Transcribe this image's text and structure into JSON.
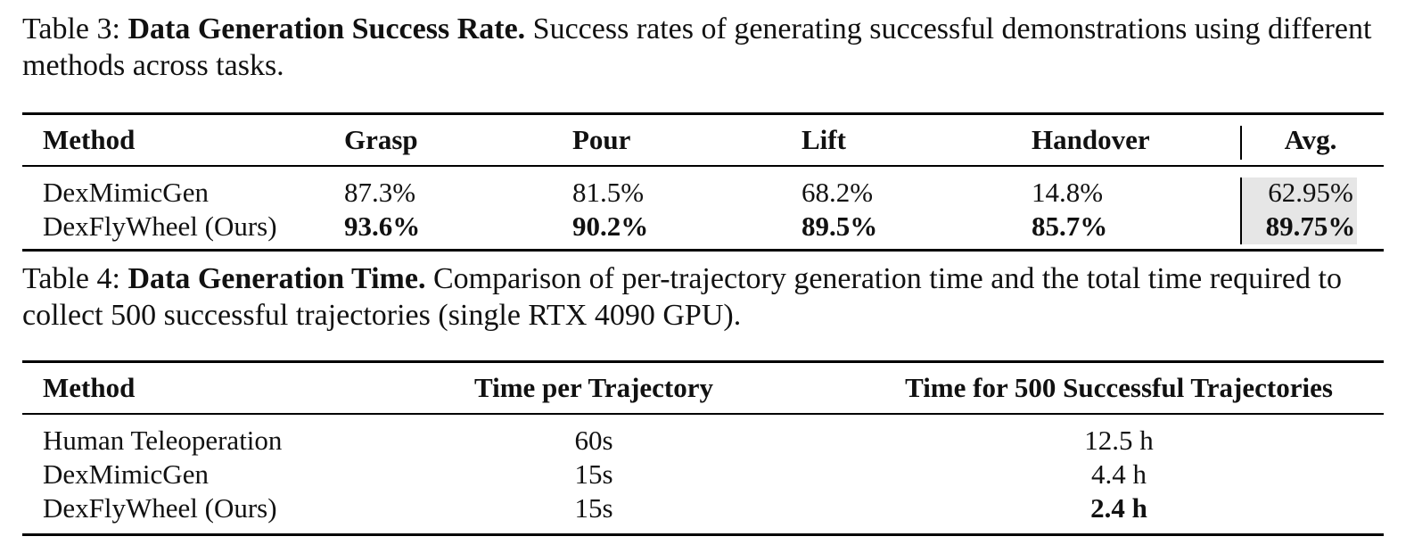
{
  "table3": {
    "caption_prefix": "Table 3:",
    "caption_bold": "Data Generation Success Rate.",
    "caption_text": "Success rates of generating successful demonstrations using different methods across tasks.",
    "headers": [
      "Method",
      "Grasp",
      "Pour",
      "Lift",
      "Handover",
      "Avg."
    ],
    "rows": [
      [
        "DexMimicGen",
        "87.3%",
        "81.5%",
        "68.2%",
        "14.8%",
        "62.95%"
      ],
      [
        "DexFlyWheel (Ours)",
        "93.6%",
        "90.2%",
        "89.5%",
        "85.7%",
        "89.75%"
      ]
    ],
    "avg_highlight_color": "#e6e6e6"
  },
  "table4": {
    "caption_prefix": "Table 4:",
    "caption_bold": "Data Generation Time.",
    "caption_text": "Comparison of per-trajectory generation time and the total time required to collect 500 successful trajectories (single RTX 4090 GPU).",
    "headers": [
      "Method",
      "Time per Trajectory",
      "Time for 500 Successful Trajectories"
    ],
    "rows": [
      [
        "Human Teleoperation",
        "60s",
        "12.5 h"
      ],
      [
        "DexMimicGen",
        "15s",
        "4.4 h"
      ],
      [
        "DexFlyWheel (Ours)",
        "15s",
        "2.4 h"
      ]
    ]
  }
}
